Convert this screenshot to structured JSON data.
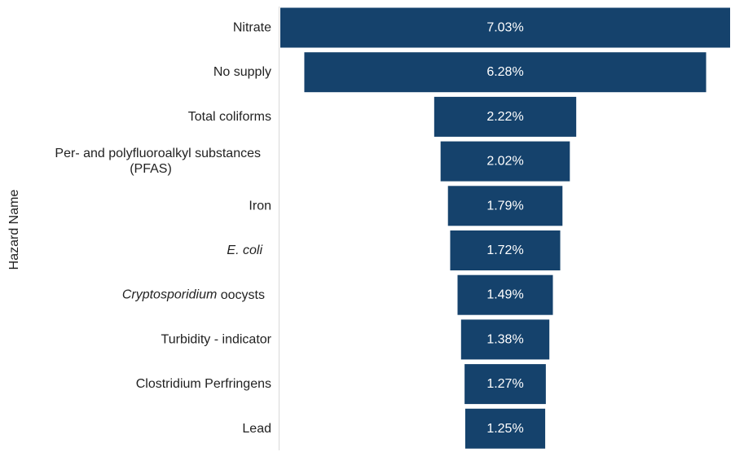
{
  "chart_data": {
    "type": "bar",
    "orientation": "horizontal-funnel",
    "ylabel": "Hazard Name",
    "categories": [
      [
        {
          "text": "Nitrate"
        }
      ],
      [
        {
          "text": "No supply"
        }
      ],
      [
        {
          "text": "Total coliforms"
        }
      ],
      [
        {
          "text": "Per- and polyfluoroalkyl substances"
        },
        {
          "text": "(PFAS)"
        }
      ],
      [
        {
          "text": "Iron"
        }
      ],
      [
        {
          "text": "E. coli",
          "italic": true
        }
      ],
      [
        {
          "text": "Cryptosporidium",
          "italic": true
        },
        {
          "text": " oocysts"
        }
      ],
      [
        {
          "text": "Turbidity - indicator"
        }
      ],
      [
        {
          "text": "Clostridium Perfringens"
        }
      ],
      [
        {
          "text": "Lead"
        }
      ]
    ],
    "values": [
      7.03,
      6.28,
      2.22,
      2.02,
      1.79,
      1.72,
      1.49,
      1.38,
      1.27,
      1.25
    ],
    "value_labels": [
      "7.03%",
      "6.28%",
      "2.22%",
      "2.02%",
      "1.79%",
      "1.72%",
      "1.49%",
      "1.38%",
      "1.27%",
      "1.25%"
    ],
    "bar_color": "#15426c",
    "grid": false,
    "legend": "none"
  }
}
